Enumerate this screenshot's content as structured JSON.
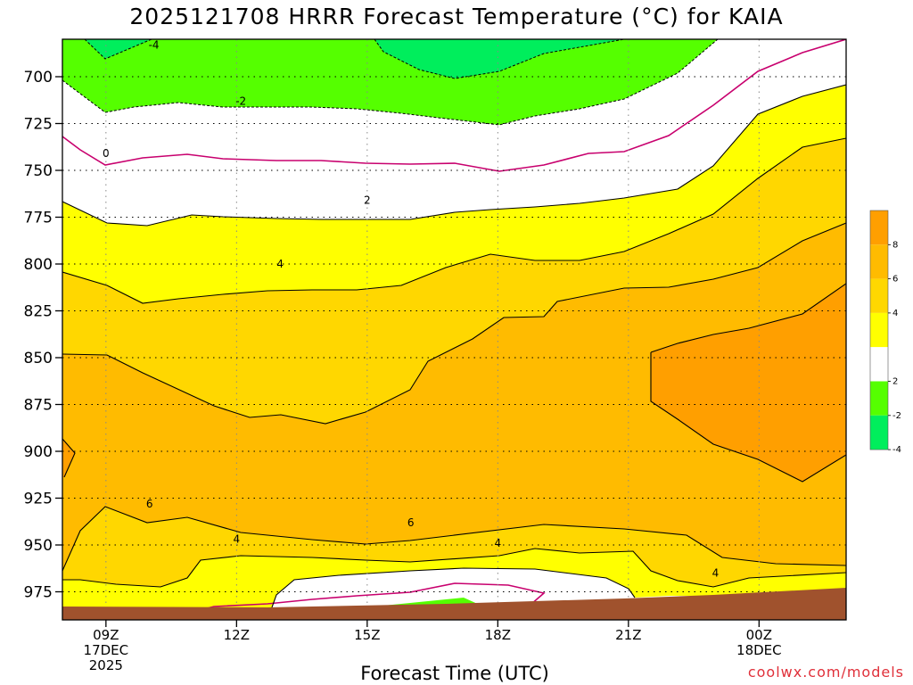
{
  "title": "2025121708 HRRR Forecast Temperature (°C) for KAIA",
  "credit": "coolwx.com/models",
  "chart_data": {
    "type": "contour",
    "title": "2025121708 HRRR Forecast Temperature (°C) for KAIA",
    "xlabel": "Forecast Time (UTC)",
    "ylabel": "",
    "variable": "Temperature (°C)",
    "x_hours": [
      8,
      9,
      10,
      11,
      12,
      13,
      14,
      15,
      16,
      17,
      18,
      19,
      20,
      21,
      22,
      23,
      24,
      25,
      26
    ],
    "x_ticks": [
      {
        "hour": 9,
        "lines": [
          "09Z",
          "17DEC",
          "2025"
        ]
      },
      {
        "hour": 12,
        "lines": [
          "12Z"
        ]
      },
      {
        "hour": 15,
        "lines": [
          "15Z"
        ]
      },
      {
        "hour": 18,
        "lines": [
          "18Z"
        ]
      },
      {
        "hour": 21,
        "lines": [
          "21Z"
        ]
      },
      {
        "hour": 24,
        "lines": [
          "00Z",
          "18DEC"
        ]
      }
    ],
    "y_ticks": [
      700,
      725,
      750,
      775,
      800,
      825,
      850,
      875,
      900,
      925,
      950,
      975
    ],
    "ylim": [
      680,
      990
    ],
    "xlim": [
      8,
      26
    ],
    "grid": true,
    "levels": [
      -6,
      -4,
      -2,
      0,
      2,
      4,
      6,
      8,
      10
    ],
    "contour_labels": [
      {
        "text": "-4",
        "hour": 10.1,
        "p": 683
      },
      {
        "text": "-2",
        "hour": 12.1,
        "p": 713
      },
      {
        "text": "0",
        "hour": 9.0,
        "p": 741
      },
      {
        "text": "2",
        "hour": 15.0,
        "p": 766
      },
      {
        "text": "4",
        "hour": 13.0,
        "p": 800
      },
      {
        "text": "6",
        "hour": 10.0,
        "p": 928
      },
      {
        "text": "6",
        "hour": 16.0,
        "p": 938
      },
      {
        "text": "4",
        "hour": 12.0,
        "p": 947
      },
      {
        "text": "4",
        "hour": 18.0,
        "p": 949
      },
      {
        "text": "4",
        "hour": 23.0,
        "p": 965
      }
    ],
    "colorbar": {
      "ticks": [
        "-4",
        "-2",
        "2",
        "4",
        "6",
        "8"
      ],
      "colors": [
        "#00ee5c",
        "#55ff00",
        "#ffffff",
        "#ffff00",
        "#ffd700",
        "#ffbb00",
        "#ff9f00"
      ]
    },
    "fill_colors": {
      "m6_m4": "#00ee5c",
      "m4_m2": "#55ff00",
      "m2_2": "#ffffff",
      "2_4": "#ffff00",
      "4_6": "#ffd700",
      "6_8": "#ffbb00",
      "8_10": "#ff9f00",
      "ground": "#a0522d"
    },
    "zero_line_color": "#c8006e"
  }
}
